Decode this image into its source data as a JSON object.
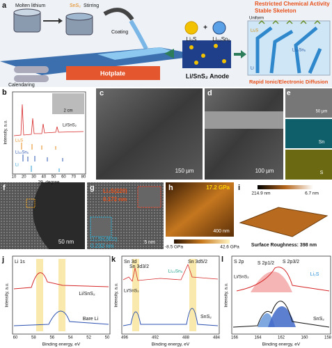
{
  "panel_a": {
    "label": "a",
    "molten_lithium": "Molten lithium",
    "sns2": "SnS₂",
    "stirring": "Stirring",
    "coating": "Coating",
    "calendaring": "Calendaring",
    "hotplate": "Hotplate",
    "li2s": "Li₂S",
    "plus": "+",
    "li22sn5": "Li₂₂Sn₅",
    "anode": "Li/SnS₂ Anode",
    "restricted": "Restricted Chemical Activity",
    "skeleton": "Stable Skeleton",
    "uniform": "Uniform",
    "inset_li2s": "Li₂S",
    "inset_li22sn5": "Li₂₂Sn₅",
    "inset_li": "Li",
    "diffusion": "Rapid Ionic/Electronic Diffusion"
  },
  "panel_b": {
    "label": "b",
    "ylabel": "Intensity, a.u.",
    "xlabel": "2θ, degree",
    "sample": "Li/SnS₂",
    "scale": "2 cm",
    "ref1": "Li₂S",
    "ref2": "Li₂₂Sn₅",
    "ref3": "Li",
    "xticks": [
      "10",
      "20",
      "30",
      "40",
      "50",
      "60",
      "70",
      "80"
    ]
  },
  "panel_c": {
    "label": "c",
    "scale": "150 µm"
  },
  "panel_d": {
    "label": "d",
    "scale": "100 µm"
  },
  "panel_e": {
    "label": "e",
    "scale": "50 µm",
    "map1": "Sn",
    "map2": "S"
  },
  "panel_f": {
    "label": "f",
    "scale": "50 nm"
  },
  "panel_g": {
    "label": "g",
    "phase1": "Li₂S(220)",
    "d1": "0.172 nm",
    "phase2": "Li₂₂Sn₅(822)",
    "d2": "0.232 nm",
    "scale": "5 nm"
  },
  "panel_h": {
    "label": "h",
    "max": "17.2 GPa",
    "scale": "400 nm",
    "cmin": "-8.5 GPa",
    "cmax": "42.6 GPa"
  },
  "panel_i": {
    "label": "i",
    "hmax": "214.9 nm",
    "hmin": "6.7 nm",
    "roughness": "Surface Roughness: 398 nm"
  },
  "panel_j": {
    "label": "j",
    "title": "Li 1s",
    "top": "Li/SnS₂",
    "bottom": "Bare Li",
    "ylabel": "Intensity, a.u.",
    "xlabel": "Binding energy, eV",
    "xticks": [
      "60",
      "58",
      "56",
      "54",
      "52",
      "50"
    ]
  },
  "panel_k": {
    "label": "k",
    "title": "Sn 3d",
    "p1": "Sn 3d3/2",
    "p2": "Sn 3d5/2",
    "phase": "Li₂₂Sn₅",
    "top": "Li/SnS₂",
    "bottom": "SnS₂",
    "ylabel": "Intensity, a.u.",
    "xlabel": "Binding energy, eV",
    "xticks": [
      "496",
      "492",
      "488",
      "484"
    ]
  },
  "panel_l": {
    "label": "l",
    "title": "S 2p",
    "p1": "S 2p1/2",
    "p2": "S 2p3/2",
    "phase": "Li₂S",
    "top": "Li/SnS₂",
    "bottom": "SnS₂",
    "ylabel": "Intensity, a.u.",
    "xlabel": "Binding energy, eV",
    "xticks": [
      "166",
      "164",
      "162",
      "160",
      "158"
    ]
  }
}
